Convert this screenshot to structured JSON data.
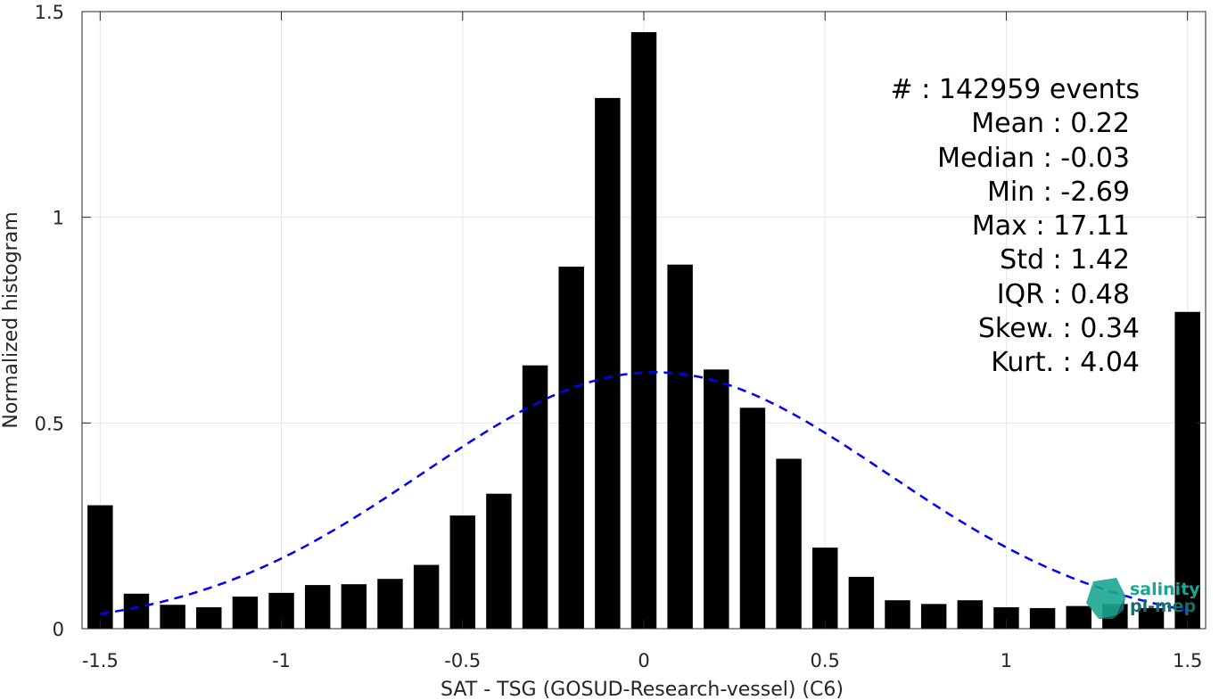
{
  "chart_data": {
    "type": "bar",
    "xlabel": "SAT - TSG (GOSUD-Research-vessel) (C6)",
    "ylabel": "Normalized histogram",
    "xlim": [
      -1.55,
      1.55
    ],
    "ylim": [
      0,
      1.5
    ],
    "xticks": [
      -1.5,
      -1,
      -0.5,
      0,
      0.5,
      1,
      1.5
    ],
    "xtick_labels": [
      "-1.5",
      "-1",
      "-0.5",
      "0",
      "0.5",
      "1",
      "1.5"
    ],
    "yticks": [
      0,
      0.5,
      1,
      1.5
    ],
    "ytick_labels": [
      "0",
      "0.5",
      "1",
      "1.5"
    ],
    "grid": true,
    "bar_width": 0.07,
    "bar_color": "#000000",
    "x": [
      -1.5,
      -1.4,
      -1.3,
      -1.2,
      -1.1,
      -1.0,
      -0.9,
      -0.8,
      -0.7,
      -0.6,
      -0.5,
      -0.4,
      -0.3,
      -0.2,
      -0.1,
      0.0,
      0.1,
      0.2,
      0.3,
      0.4,
      0.5,
      0.6,
      0.7,
      0.8,
      0.9,
      1.0,
      1.1,
      1.2,
      1.3,
      1.4,
      1.5
    ],
    "values": [
      0.3,
      0.085,
      0.058,
      0.052,
      0.078,
      0.087,
      0.106,
      0.108,
      0.121,
      0.155,
      0.275,
      0.328,
      0.64,
      0.88,
      1.29,
      1.45,
      0.885,
      0.63,
      0.537,
      0.413,
      0.197,
      0.126,
      0.069,
      0.06,
      0.069,
      0.052,
      0.05,
      0.055,
      0.06,
      0.05,
      0.77
    ],
    "fit_curve": {
      "type": "gaussian",
      "mean": 0.03,
      "std": 0.64,
      "color": "#0000ff",
      "style": "dashed",
      "x_range": [
        -1.5,
        1.5
      ]
    },
    "annotations": [
      "#  : 142959 events",
      "Mean : 0.22",
      "Median : -0.03",
      "Min : -2.69",
      "Max : 17.11",
      "Std : 1.42",
      "IQR : 0.48",
      "Skew. : 0.34",
      "Kurt. : 4.04"
    ]
  },
  "logo": {
    "line1": "salinity",
    "line2": "pi-mep",
    "colors": [
      "#1aa68f",
      "#136f6f"
    ]
  }
}
